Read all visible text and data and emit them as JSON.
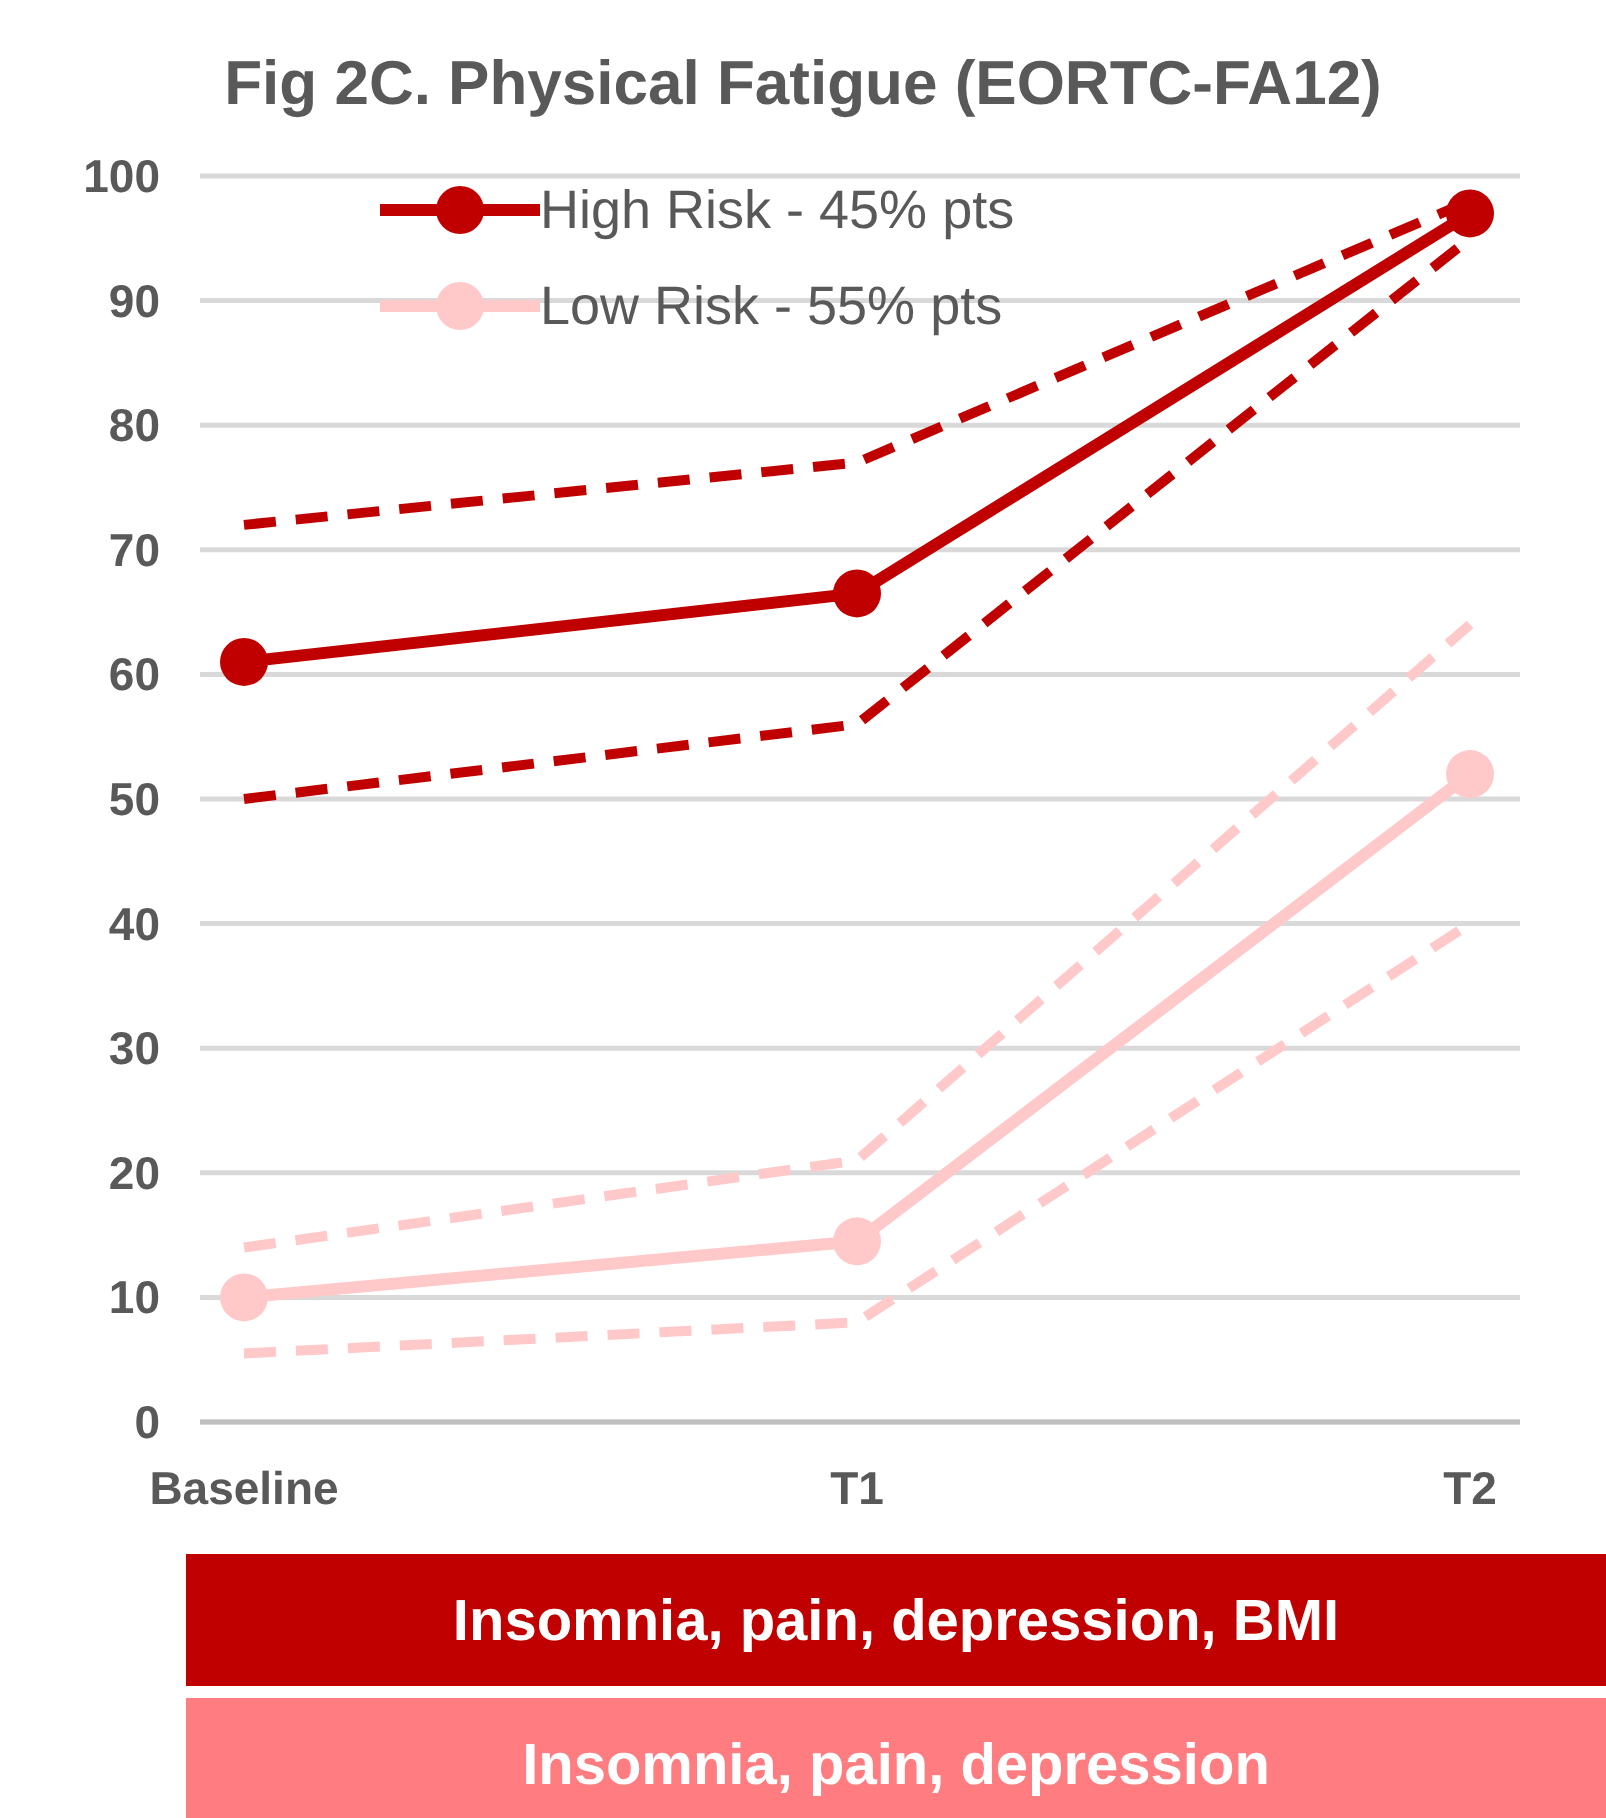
{
  "chart_data": {
    "type": "line",
    "title": "Fig 2C. Physical Fatigue (EORTC-FA12)",
    "categories": [
      "Baseline",
      "T1",
      "T2"
    ],
    "series": [
      {
        "name": "High Risk - 45% pts",
        "color": "#c00000",
        "values": [
          61,
          66.5,
          97
        ],
        "marker": "circle",
        "line_style": "solid"
      },
      {
        "color": "#c00000",
        "values": [
          72,
          77,
          98
        ],
        "marker": "none",
        "line_style": "dashed"
      },
      {
        "color": "#c00000",
        "values": [
          50,
          56,
          95
        ],
        "marker": "none",
        "line_style": "dashed"
      },
      {
        "name": "Low Risk - 55% pts",
        "color": "#ffc9c9",
        "values": [
          10,
          14.5,
          52
        ],
        "marker": "circle",
        "line_style": "solid"
      },
      {
        "color": "#ffc9c9",
        "values": [
          14,
          21,
          64
        ],
        "marker": "none",
        "line_style": "dashed"
      },
      {
        "color": "#ffc9c9",
        "values": [
          5.5,
          8,
          40
        ],
        "marker": "none",
        "line_style": "dashed"
      }
    ],
    "ylim": [
      0,
      100
    ],
    "yticks": [
      0,
      10,
      20,
      30,
      40,
      50,
      60,
      70,
      80,
      90,
      100
    ],
    "grid": "y",
    "legend": "top left",
    "annotations": [
      "Insomnia, pain, depression, BMI",
      "Insomnia, pain, depression"
    ]
  }
}
